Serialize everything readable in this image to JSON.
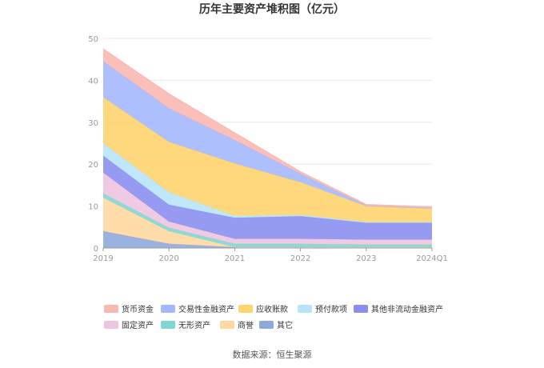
{
  "chart_data": {
    "type": "area",
    "stacked": true,
    "title": "历年主要资产堆积图（亿元）",
    "categories": [
      "2019",
      "2020",
      "2021",
      "2022",
      "2023",
      "2024Q1"
    ],
    "ylim": [
      0,
      50
    ],
    "yticks": [
      "0",
      "10",
      "20",
      "30",
      "40",
      "50"
    ],
    "grid": true,
    "legend_position": "bottom",
    "series": [
      {
        "name": "其它",
        "color": "#8eaadb",
        "values": [
          4.0,
          1.0,
          0.2,
          0.2,
          0.2,
          0.2
        ]
      },
      {
        "name": "商誉",
        "color": "#ffd8a0",
        "values": [
          8.0,
          3.0,
          0.0,
          0.0,
          0.0,
          0.0
        ]
      },
      {
        "name": "无形资产",
        "color": "#7fd6d2",
        "values": [
          1.0,
          0.8,
          0.8,
          0.8,
          0.6,
          0.6
        ]
      },
      {
        "name": "固定资产",
        "color": "#eec4e0",
        "values": [
          5.0,
          1.5,
          1.2,
          1.2,
          1.2,
          1.2
        ]
      },
      {
        "name": "其他非流动金融资产",
        "color": "#8b8fef",
        "values": [
          4.0,
          4.0,
          5.0,
          5.4,
          4.0,
          4.0
        ]
      },
      {
        "name": "预付款项",
        "color": "#b8e4f8",
        "values": [
          3.0,
          3.0,
          0.5,
          0.3,
          0.2,
          0.2
        ]
      },
      {
        "name": "应收账款",
        "color": "#ffd36e",
        "values": [
          11.0,
          12.0,
          12.5,
          7.8,
          3.8,
          3.2
        ]
      },
      {
        "name": "交易性金融资产",
        "color": "#a4b8ff",
        "values": [
          8.5,
          8.0,
          5.5,
          2.0,
          0.1,
          0.1
        ]
      },
      {
        "name": "货币资金",
        "color": "#f9b8b0",
        "values": [
          3.0,
          3.5,
          1.8,
          0.5,
          0.3,
          0.3
        ]
      }
    ],
    "legend_order": [
      "货币资金",
      "交易性金融资产",
      "应收账款",
      "预付款项",
      "其他非流动金融资产",
      "固定资产",
      "无形资产",
      "商誉",
      "其它"
    ]
  },
  "source": "数据来源：恒生聚源"
}
